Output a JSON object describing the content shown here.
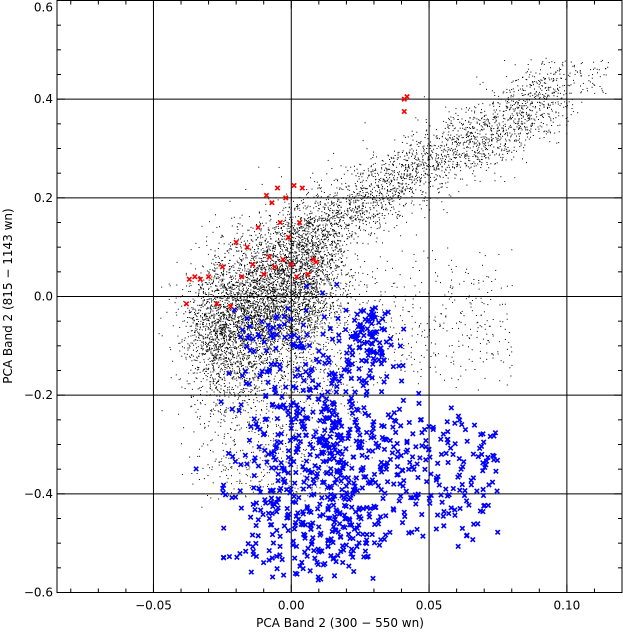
{
  "chart_data": {
    "type": "scatter",
    "title": "",
    "xlabel": "PCA Band 2 (300 − 550 wn)",
    "ylabel": "PCA Band 2 (815 − 1143 wn)",
    "xlim": [
      -0.085,
      0.12
    ],
    "ylim": [
      -0.6,
      0.6
    ],
    "x_ticks": [
      -0.05,
      0.0,
      0.05,
      0.1
    ],
    "x_tick_labels": [
      "−0.05",
      "0.00",
      "0.05",
      "0.10"
    ],
    "y_ticks": [
      -0.6,
      -0.4,
      -0.2,
      0.0,
      0.2,
      0.4,
      0.6
    ],
    "y_tick_labels": [
      "−0.6",
      "−0.4",
      "−0.2",
      "0.0",
      "0.2",
      "0.4",
      "0.6"
    ],
    "grid": true,
    "legend": null,
    "colors": {
      "black_dots": "#000000",
      "red_x": "#ff0000",
      "blue_x": "#0000ff"
    },
    "series": [
      {
        "marker": "dot",
        "color": "#000000",
        "approx_count": 9000,
        "description_points": [
          [
            -0.03,
            -0.05
          ],
          [
            -0.02,
            0.0
          ],
          [
            -0.01,
            0.05
          ],
          [
            0.0,
            0.1
          ],
          [
            0.01,
            0.15
          ],
          [
            0.02,
            0.2
          ],
          [
            0.03,
            0.24
          ],
          [
            0.04,
            0.29
          ],
          [
            0.05,
            0.34
          ],
          [
            0.06,
            0.37
          ],
          [
            0.07,
            0.39
          ],
          [
            0.08,
            0.42
          ],
          [
            0.09,
            0.46
          ],
          [
            0.1,
            0.47
          ],
          [
            0.11,
            0.46
          ],
          [
            -0.04,
            -0.1
          ],
          [
            -0.03,
            -0.15
          ],
          [
            -0.02,
            -0.25
          ],
          [
            0.0,
            -0.3
          ],
          [
            0.02,
            -0.35
          ]
        ]
      },
      {
        "marker": "x",
        "color": "#ff0000",
        "points": [
          [
            -0.038,
            -0.015
          ],
          [
            -0.037,
            0.035
          ],
          [
            -0.035,
            0.04
          ],
          [
            -0.033,
            0.035
          ],
          [
            -0.03,
            0.04
          ],
          [
            -0.027,
            -0.015
          ],
          [
            -0.025,
            0.06
          ],
          [
            -0.022,
            -0.02
          ],
          [
            -0.02,
            0.11
          ],
          [
            -0.018,
            0.04
          ],
          [
            -0.016,
            0.1
          ],
          [
            -0.014,
            0.065
          ],
          [
            -0.012,
            0.14
          ],
          [
            -0.01,
            0.045
          ],
          [
            -0.009,
            0.205
          ],
          [
            -0.008,
            0.08
          ],
          [
            -0.007,
            0.19
          ],
          [
            -0.006,
            0.06
          ],
          [
            -0.005,
            0.22
          ],
          [
            -0.004,
            0.15
          ],
          [
            -0.003,
            0.075
          ],
          [
            -0.002,
            0.2
          ],
          [
            -0.001,
            0.12
          ],
          [
            0.0,
            0.065
          ],
          [
            0.001,
            0.225
          ],
          [
            0.002,
            0.04
          ],
          [
            0.003,
            0.15
          ],
          [
            0.004,
            0.22
          ],
          [
            0.006,
            0.045
          ],
          [
            0.008,
            0.075
          ],
          [
            0.009,
            0.07
          ],
          [
            0.041,
            0.4
          ],
          [
            0.042,
            0.405
          ],
          [
            0.041,
            0.375
          ]
        ]
      },
      {
        "marker": "x",
        "color": "#0000ff",
        "approx_count": 900,
        "description_points": [
          [
            0.03,
            -0.01
          ],
          [
            0.028,
            -0.05
          ],
          [
            0.02,
            -0.1
          ],
          [
            0.01,
            -0.15
          ],
          [
            0.0,
            -0.2
          ],
          [
            -0.01,
            -0.25
          ],
          [
            -0.02,
            -0.3
          ],
          [
            0.0,
            -0.32
          ],
          [
            0.01,
            -0.4
          ],
          [
            0.02,
            -0.45
          ],
          [
            0.04,
            -0.35
          ],
          [
            0.05,
            -0.4
          ],
          [
            0.06,
            -0.3
          ],
          [
            0.07,
            -0.25
          ],
          [
            0.075,
            -0.46
          ],
          [
            -0.015,
            -0.45
          ],
          [
            -0.01,
            -0.55
          ],
          [
            0.0,
            -0.58
          ],
          [
            0.02,
            -0.55
          ],
          [
            0.05,
            -0.2
          ]
        ]
      }
    ]
  }
}
